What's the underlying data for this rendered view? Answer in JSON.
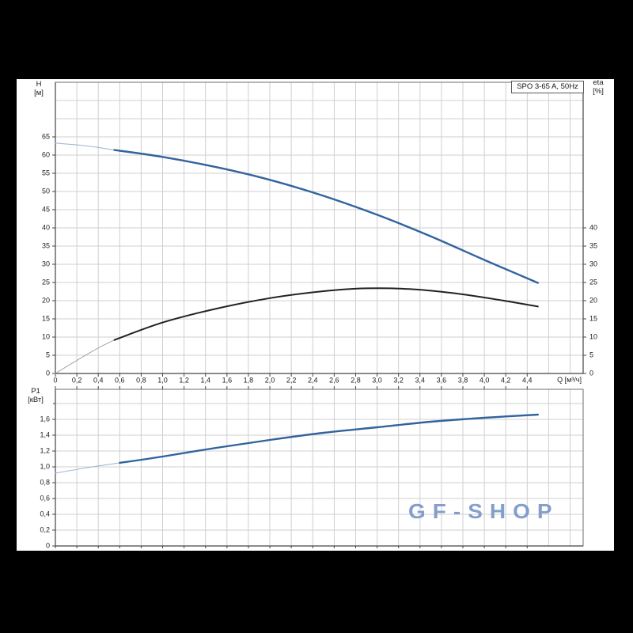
{
  "page": {
    "background": "#000000",
    "panel_background": "#ffffff"
  },
  "pump_label": "SPO 3-65 A, 50Hz",
  "watermark": {
    "text": "GF-SHOP",
    "color": "#7492c4"
  },
  "axes_labels": {
    "head_line1": "H",
    "head_line2": "[м]",
    "eta_line1": "eta",
    "eta_line2": "[%]",
    "power_line1": "P1",
    "power_line2": "[кВт]",
    "flow": "Q [м³/ч]"
  },
  "colors": {
    "grid": "#cfcfcf",
    "border": "#6e6e6e",
    "axis": "#444444",
    "tick_text": "#1c1c1c",
    "curve_blue": "#31639e",
    "curve_blue_thin": "#a5b8d4",
    "curve_black": "#222222",
    "curve_black_thin": "#a3a3a3"
  },
  "chart_data": [
    {
      "id": "head-efficiency-chart",
      "type": "line",
      "title": "SPO 3-65 A, 50Hz",
      "xlabel": "Q [м³/ч]",
      "ylabel": "H [м]",
      "ylabel_right": "eta [%]",
      "xlim": [
        0,
        4.92
      ],
      "ylim": [
        0,
        80
      ],
      "grid": true,
      "x_ticks": {
        "values": [
          0,
          0.2,
          0.4,
          0.6,
          0.8,
          1,
          1.2,
          1.4,
          1.6,
          1.8,
          2,
          2.2,
          2.4,
          2.6,
          2.8,
          3,
          3.2,
          3.4,
          3.6,
          3.8,
          4,
          4.2,
          4.4
        ],
        "labels": [
          "0",
          "0,2",
          "0,4",
          "0,6",
          "0,8",
          "1,0",
          "1,2",
          "1,4",
          "1,6",
          "1,8",
          "2,0",
          "2,2",
          "2,4",
          "2,6",
          "2,8",
          "3,0",
          "3,2",
          "3,4",
          "3,6",
          "3,8",
          "4,0",
          "4,2",
          "4,4"
        ]
      },
      "y_ticks_left": {
        "values": [
          0,
          5,
          10,
          15,
          20,
          25,
          30,
          35,
          40,
          45,
          50,
          55,
          60,
          65
        ],
        "labels": [
          "0",
          "5",
          "10",
          "15",
          "20",
          "25",
          "30",
          "35",
          "40",
          "45",
          "50",
          "55",
          "60",
          "65"
        ]
      },
      "y_ticks_right": {
        "values": [
          0,
          5,
          10,
          15,
          20,
          25,
          30,
          35,
          40
        ],
        "labels": [
          "0",
          "5",
          "10",
          "15",
          "20",
          "25",
          "30",
          "35",
          "40"
        ]
      },
      "series": [
        {
          "name": "h-curve-lowflow",
          "color": "#a5b8d4",
          "width": 1.1,
          "points": [
            [
              0,
              63.3
            ],
            [
              0.3,
              62.5
            ],
            [
              0.55,
              61.4
            ]
          ]
        },
        {
          "name": "h-curve",
          "color": "#31639e",
          "width": 2.4,
          "points": [
            [
              0.55,
              61.4
            ],
            [
              1,
              59.5
            ],
            [
              1.5,
              56.7
            ],
            [
              2,
              53.2
            ],
            [
              2.5,
              48.8
            ],
            [
              3,
              43.6
            ],
            [
              3.5,
              37.7
            ],
            [
              4,
              31.2
            ],
            [
              4.5,
              24.9
            ]
          ]
        },
        {
          "name": "eta-curve-lowflow",
          "color": "#a3a3a3",
          "width": 1,
          "points": [
            [
              0,
              0
            ],
            [
              0.2,
              3.6
            ],
            [
              0.4,
              7.0
            ],
            [
              0.55,
              9.2
            ]
          ]
        },
        {
          "name": "eta-curve",
          "color": "#222222",
          "width": 2,
          "points": [
            [
              0.55,
              9.2
            ],
            [
              1,
              14
            ],
            [
              1.5,
              17.8
            ],
            [
              2,
              20.7
            ],
            [
              2.5,
              22.6
            ],
            [
              2.9,
              23.4
            ],
            [
              3.3,
              23.2
            ],
            [
              3.7,
              22.1
            ],
            [
              4.1,
              20.4
            ],
            [
              4.5,
              18.4
            ]
          ]
        }
      ]
    },
    {
      "id": "power-chart",
      "type": "line",
      "title": "",
      "xlabel": "Q [м³/ч]",
      "ylabel": "P1 [кВт]",
      "xlim": [
        0,
        4.92
      ],
      "ylim": [
        0,
        1.98
      ],
      "grid": true,
      "y_ticks_left": {
        "values": [
          0,
          0.2,
          0.4,
          0.6,
          0.8,
          1,
          1.2,
          1.4,
          1.6
        ],
        "labels": [
          "0",
          "0,2",
          "0,4",
          "0,6",
          "0,8",
          "1,0",
          "1,2",
          "1,4",
          "1,6"
        ]
      },
      "series": [
        {
          "name": "p1-curve-lowflow",
          "color": "#a5b8d4",
          "width": 1.1,
          "points": [
            [
              0,
              0.92
            ],
            [
              0.3,
              0.99
            ],
            [
              0.6,
              1.05
            ]
          ]
        },
        {
          "name": "p1-curve",
          "color": "#31639e",
          "width": 2.4,
          "points": [
            [
              0.6,
              1.05
            ],
            [
              1,
              1.13
            ],
            [
              1.5,
              1.24
            ],
            [
              2,
              1.34
            ],
            [
              2.5,
              1.43
            ],
            [
              3,
              1.5
            ],
            [
              3.5,
              1.57
            ],
            [
              4,
              1.62
            ],
            [
              4.5,
              1.66
            ]
          ]
        }
      ]
    }
  ]
}
